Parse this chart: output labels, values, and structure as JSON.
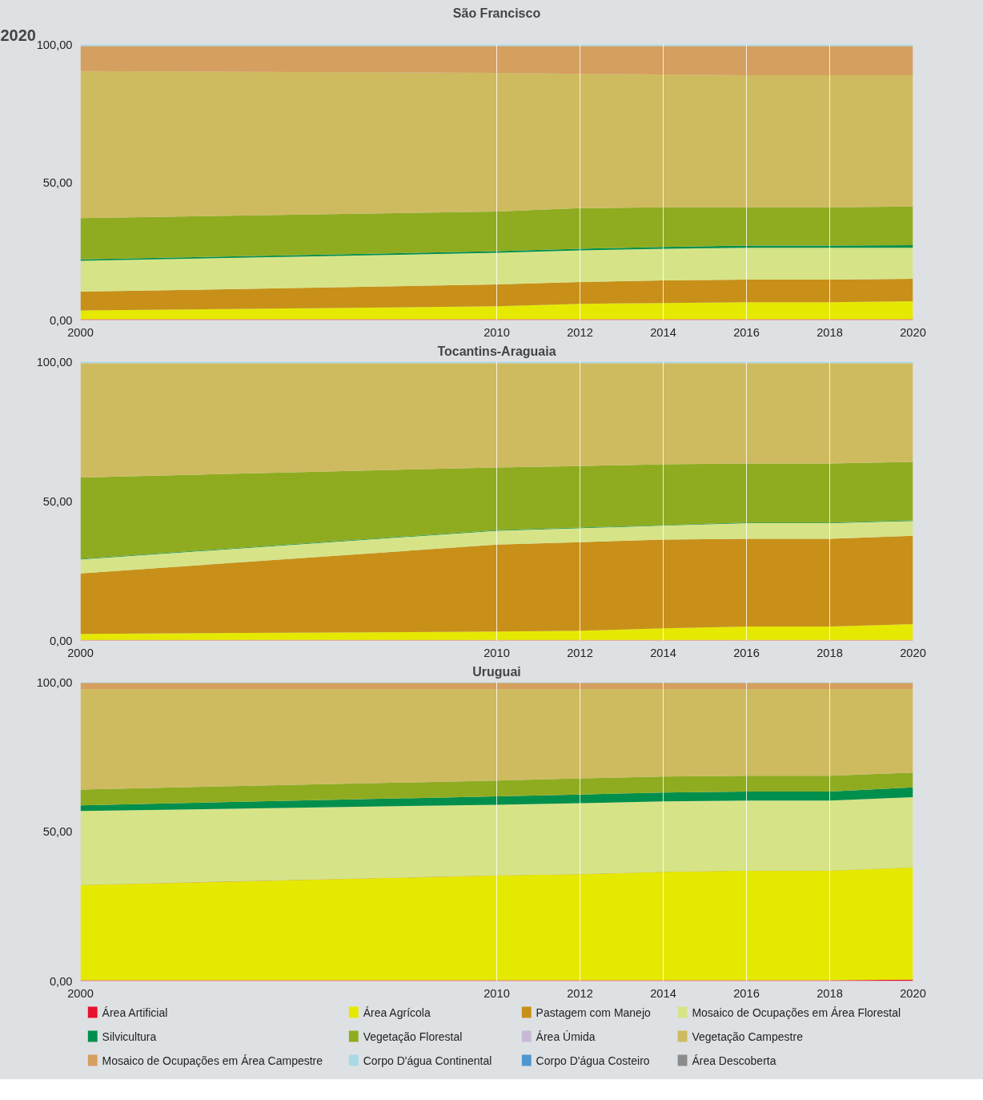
{
  "chart_data": [
    {
      "type": "area",
      "stacked": true,
      "title": "São Francisco",
      "annotations": [
        "2020"
      ],
      "legend": "bottom",
      "x": [
        2000,
        2010,
        2012,
        2014,
        2016,
        2018,
        2020
      ],
      "xlim": [
        2000,
        2020
      ],
      "xticks": [
        2000,
        2010,
        2012,
        2014,
        2016,
        2018,
        2020
      ],
      "ylim": [
        0,
        100
      ],
      "yticks": [
        {
          "value": 0,
          "label": "0,00"
        },
        {
          "value": 50,
          "label": "50,00"
        },
        {
          "value": 100,
          "label": "100,00"
        }
      ],
      "grid": "x",
      "series": [
        {
          "name": "Área Artificial",
          "color": "#e8112d",
          "values": [
            0.3,
            0.3,
            0.3,
            0.3,
            0.3,
            0.3,
            0.3
          ]
        },
        {
          "name": "Área Agrícola",
          "color": "#e5e900",
          "values": [
            3.2,
            4.7,
            5.6,
            5.9,
            6.2,
            6.2,
            6.5
          ]
        },
        {
          "name": "Pastagem com Manejo",
          "color": "#c89019",
          "values": [
            6.8,
            7.9,
            7.9,
            8.2,
            8.2,
            8.2,
            8.2
          ]
        },
        {
          "name": "Mosaico de Ocupações em Área Florestal",
          "color": "#d6e487",
          "values": [
            11.2,
            11.5,
            11.5,
            11.5,
            11.5,
            11.5,
            11.2
          ]
        },
        {
          "name": "Silvicultura",
          "color": "#008f4c",
          "values": [
            0.5,
            0.6,
            0.6,
            0.6,
            0.8,
            0.8,
            1.0
          ]
        },
        {
          "name": "Vegetação Florestal",
          "color": "#8fac21",
          "values": [
            15.0,
            14.4,
            14.7,
            14.4,
            13.9,
            13.9,
            14.0
          ]
        },
        {
          "name": "Área Úmida",
          "color": "#c8b8d8",
          "values": [
            null,
            null,
            null,
            null,
            null,
            null,
            null
          ]
        },
        {
          "name": "Vegetação Campestre",
          "color": "#cfbb5f",
          "values": [
            53.3,
            50.3,
            48.7,
            48.2,
            47.9,
            47.9,
            47.6
          ]
        },
        {
          "name": "Mosaico de Ocupações em Área Campestre",
          "color": "#d59f5f",
          "values": [
            9.1,
            9.7,
            10.1,
            10.3,
            10.6,
            10.6,
            10.6
          ]
        },
        {
          "name": "Corpo D'água Continental",
          "color": "#a8dae6",
          "values": [
            0.6,
            0.6,
            0.6,
            0.6,
            0.6,
            0.6,
            0.6
          ]
        },
        {
          "name": "Corpo D'água Costeiro",
          "color": "#4d96d0",
          "values": [
            null,
            null,
            null,
            null,
            null,
            null,
            null
          ]
        },
        {
          "name": "Área Descoberta",
          "color": "#8c8c8c",
          "values": [
            null,
            null,
            null,
            null,
            null,
            null,
            null
          ]
        }
      ]
    },
    {
      "type": "area",
      "stacked": true,
      "title": "Tocantins-Araguaia",
      "x": [
        2000,
        2010,
        2012,
        2014,
        2016,
        2018,
        2020
      ],
      "xlim": [
        2000,
        2020
      ],
      "xticks": [
        2000,
        2010,
        2012,
        2014,
        2016,
        2018,
        2020
      ],
      "ylim": [
        0,
        100
      ],
      "yticks": [
        {
          "value": 0,
          "label": "0,00"
        },
        {
          "value": 50,
          "label": "50,00"
        },
        {
          "value": 100,
          "label": "100,00"
        }
      ],
      "grid": "x",
      "series": [
        {
          "color": "#e8112d",
          "values": [
            0.2,
            0.2,
            0.2,
            0.2,
            0.2,
            0.2,
            0.2
          ]
        },
        {
          "color": "#e5e900",
          "values": [
            2.2,
            3.0,
            3.3,
            4.2,
            4.8,
            4.8,
            5.7
          ]
        },
        {
          "color": "#c89019",
          "values": [
            21.7,
            31.2,
            31.8,
            31.8,
            31.5,
            31.5,
            31.7
          ]
        },
        {
          "color": "#d6e487",
          "values": [
            5.0,
            5.0,
            5.0,
            5.0,
            5.6,
            5.6,
            5.3
          ]
        },
        {
          "color": "#008f4c",
          "values": [
            0.2,
            0.2,
            0.2,
            0.2,
            0.2,
            0.2,
            0.2
          ]
        },
        {
          "color": "#8fac21",
          "values": [
            29.2,
            22.5,
            22.1,
            21.8,
            21.2,
            21.2,
            21.0
          ]
        },
        {
          "color": "#cfbb5f",
          "values": [
            40.9,
            37.3,
            36.8,
            36.2,
            35.9,
            35.9,
            35.3
          ]
        },
        {
          "color": "#d59f5f",
          "values": [
            0.1,
            0.1,
            0.1,
            0.1,
            0.1,
            0.1,
            0.1
          ]
        },
        {
          "color": "#a8dae6",
          "values": [
            0.6,
            0.6,
            0.6,
            0.6,
            0.6,
            0.6,
            0.6
          ]
        }
      ]
    },
    {
      "type": "area",
      "stacked": true,
      "title": "Uruguai",
      "x": [
        2000,
        2010,
        2012,
        2014,
        2016,
        2018,
        2020
      ],
      "xlim": [
        2000,
        2020
      ],
      "xticks": [
        2000,
        2010,
        2012,
        2014,
        2016,
        2018,
        2020
      ],
      "ylim": [
        0,
        100
      ],
      "yticks": [
        {
          "value": 0,
          "label": "0,00"
        },
        {
          "value": 50,
          "label": "50,00"
        },
        {
          "value": 100,
          "label": "100,00"
        }
      ],
      "grid": "x",
      "series": [
        {
          "color": "#e8112d",
          "values": [
            0.3,
            0.3,
            0.3,
            0.3,
            0.3,
            0.3,
            0.5
          ]
        },
        {
          "color": "#e5e900",
          "values": [
            31.8,
            35.0,
            35.4,
            36.2,
            36.6,
            36.6,
            37.5
          ]
        },
        {
          "color": "#c89019",
          "values": [
            0.1,
            0.1,
            0.1,
            0.1,
            0.1,
            0.1,
            0.1
          ]
        },
        {
          "color": "#d6e487",
          "values": [
            24.7,
            23.6,
            23.7,
            23.5,
            23.4,
            23.4,
            23.4
          ]
        },
        {
          "color": "#008f4c",
          "values": [
            1.9,
            2.8,
            2.9,
            3.0,
            3.0,
            3.0,
            3.3
          ]
        },
        {
          "color": "#8fac21",
          "values": [
            5.3,
            5.3,
            5.4,
            5.3,
            5.3,
            5.3,
            5.0
          ]
        },
        {
          "color": "#cfbb5f",
          "values": [
            33.6,
            30.6,
            29.9,
            29.3,
            29.0,
            29.0,
            27.9
          ]
        },
        {
          "color": "#d59f5f",
          "values": [
            2.1,
            2.1,
            2.1,
            2.1,
            2.1,
            2.1,
            2.1
          ]
        },
        {
          "color": "#a8dae6",
          "values": [
            0.2,
            0.2,
            0.2,
            0.2,
            0.2,
            0.2,
            0.2
          ]
        }
      ]
    }
  ]
}
